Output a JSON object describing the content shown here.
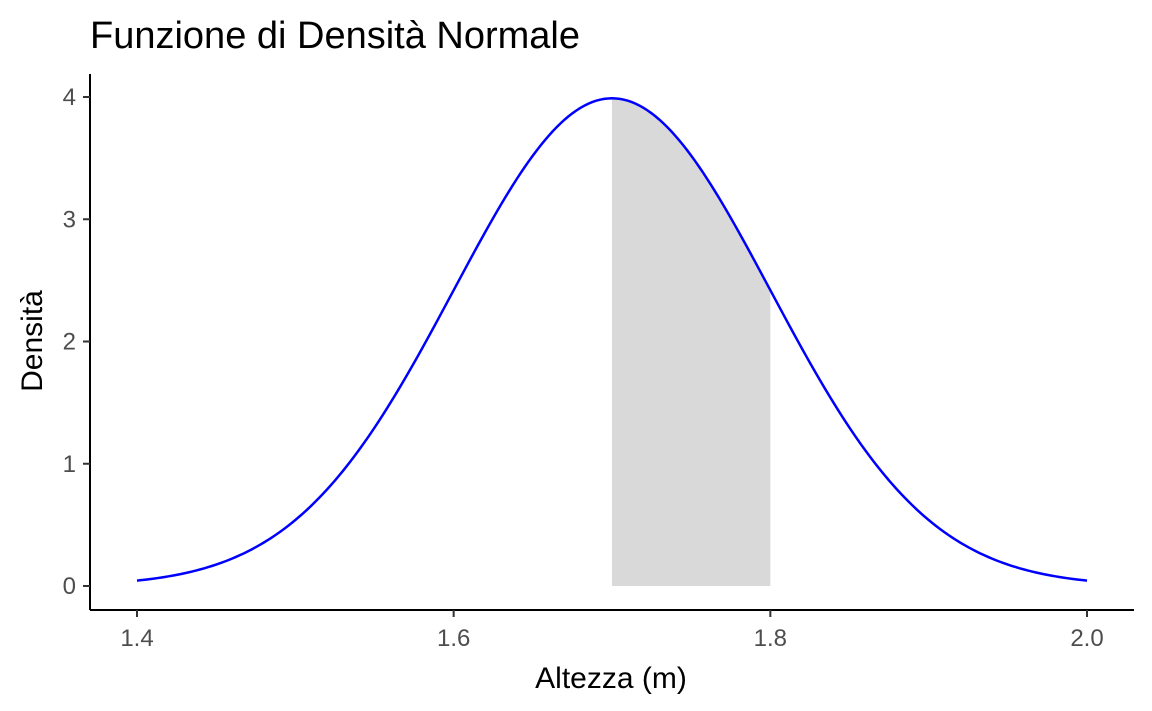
{
  "chart_data": {
    "type": "area",
    "title": "Funzione di Densità Normale",
    "xlabel": "Altezza (m)",
    "ylabel": "Densità",
    "xlim": [
      1.4,
      2.0
    ],
    "ylim": [
      0,
      4
    ],
    "x_ticks": [
      {
        "value": 1.4,
        "label": "1.4"
      },
      {
        "value": 1.6,
        "label": "1.6"
      },
      {
        "value": 1.8,
        "label": "1.8"
      },
      {
        "value": 2.0,
        "label": "2.0"
      }
    ],
    "y_ticks": [
      {
        "value": 0,
        "label": "0"
      },
      {
        "value": 1,
        "label": "1"
      },
      {
        "value": 2,
        "label": "2"
      },
      {
        "value": 3,
        "label": "3"
      },
      {
        "value": 4,
        "label": "4"
      }
    ],
    "series": [
      {
        "type": "line",
        "distribution": "normal",
        "mean": 1.7,
        "sd": 0.1,
        "x_range": [
          1.4,
          2.0
        ],
        "color": "#0000ff"
      },
      {
        "type": "area",
        "distribution": "normal",
        "mean": 1.7,
        "sd": 0.1,
        "x_range": [
          1.7,
          1.8
        ],
        "color": "#d9d9d9"
      }
    ],
    "grid": false,
    "legend": "none"
  }
}
